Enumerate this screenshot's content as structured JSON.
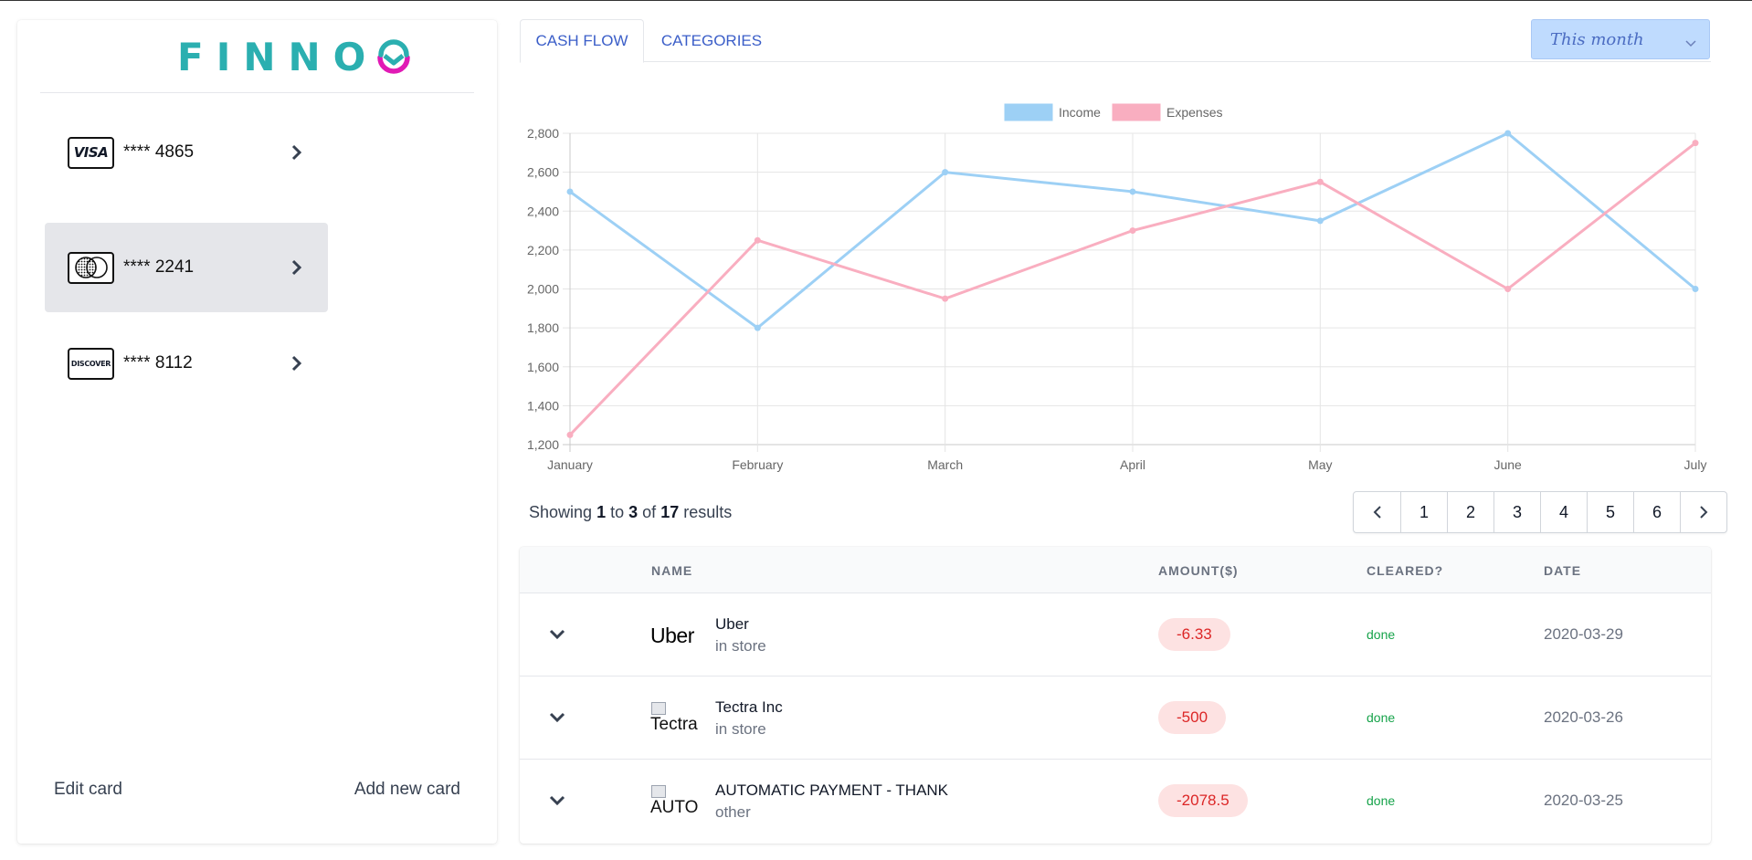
{
  "brand": {
    "name": "FINNO",
    "color": "#2bafb0",
    "mark_color": "#e11ab5"
  },
  "sidebar": {
    "cards": [
      {
        "brand": "VISA",
        "number": "**** 4865",
        "icon": "visa-logo",
        "active": false
      },
      {
        "brand": "Mastercard",
        "number": "**** 2241",
        "icon": "mastercard-logo",
        "active": true
      },
      {
        "brand": "DISCOVER",
        "number": "**** 8112",
        "icon": "discover-logo",
        "active": false
      }
    ],
    "edit_label": "Edit card",
    "add_label": "Add new card"
  },
  "tabs": [
    {
      "label": "CASH FLOW",
      "active": true
    },
    {
      "label": "CATEGORIES",
      "active": false
    }
  ],
  "period": {
    "value": "This month",
    "icon": "chevron-down-icon"
  },
  "chart_data": {
    "type": "line",
    "categories": [
      "January",
      "February",
      "March",
      "April",
      "May",
      "June",
      "July"
    ],
    "series": [
      {
        "name": "Income",
        "color": "#9dd0f5",
        "values": [
          2500,
          1800,
          2600,
          2500,
          2350,
          2800,
          2000
        ]
      },
      {
        "name": "Expenses",
        "color": "#f9aec0",
        "values": [
          1250,
          2250,
          1950,
          2300,
          2550,
          2000,
          2750
        ]
      }
    ],
    "ylim": [
      1200,
      2800
    ],
    "yticks": [
      "1,200",
      "1,400",
      "1,600",
      "1,800",
      "2,000",
      "2,200",
      "2,400",
      "2,600",
      "2,800"
    ],
    "grid": true,
    "legend": "top-center"
  },
  "results": {
    "prefix": "Showing",
    "from": "1",
    "to_word": "to",
    "to": "3",
    "of_word": "of",
    "total": "17",
    "suffix": "results"
  },
  "pagination": {
    "pages": [
      "1",
      "2",
      "3",
      "4",
      "5",
      "6"
    ]
  },
  "table": {
    "headers": [
      "NAME",
      "AMOUNT($)",
      "CLEARED?",
      "DATE"
    ],
    "rows": [
      {
        "logo_text": "Uber",
        "logo_kind": "uber",
        "name": "Uber",
        "category": "in store",
        "amount": "-6.33",
        "cleared": "done",
        "date": "2020-03-29"
      },
      {
        "logo_text": "Tectra",
        "logo_kind": "broken",
        "name": "Tectra Inc",
        "category": "in store",
        "amount": "-500",
        "cleared": "done",
        "date": "2020-03-26"
      },
      {
        "logo_text": "AUTO",
        "logo_kind": "broken",
        "name": "AUTOMATIC PAYMENT - THANK",
        "category": "other",
        "amount": "-2078.5",
        "cleared": "done",
        "date": "2020-03-25"
      }
    ]
  },
  "colors": {
    "tab_text": "#3b5ec8",
    "select_bg": "#bfdbfe",
    "amount_bg": "#fde2e2",
    "amount_text": "#dc2626",
    "done": "#16a34a"
  }
}
